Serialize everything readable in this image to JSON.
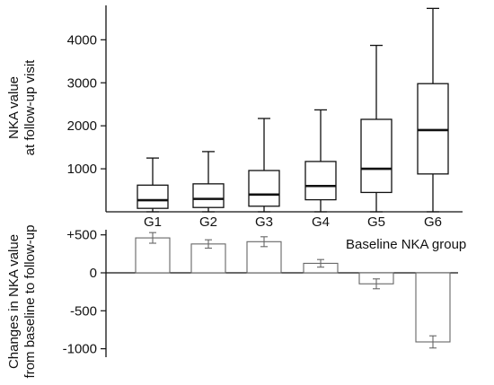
{
  "chart_data": [
    {
      "type": "box",
      "ylabel_lines": [
        "NKA value",
        "at follow-up visit"
      ],
      "yticks": [
        "1000",
        "2000",
        "3000",
        "4000"
      ],
      "ylim": [
        0,
        4800
      ],
      "categories": [
        "G1",
        "G2",
        "G3",
        "G4",
        "G5",
        "G6"
      ],
      "boxes": [
        {
          "min": 0,
          "q1": 80,
          "median": 270,
          "q3": 620,
          "max": 1250
        },
        {
          "min": 0,
          "q1": 100,
          "median": 300,
          "q3": 650,
          "max": 1400
        },
        {
          "min": 0,
          "q1": 130,
          "median": 400,
          "q3": 960,
          "max": 2170
        },
        {
          "min": 0,
          "q1": 280,
          "median": 600,
          "q3": 1170,
          "max": 2370
        },
        {
          "min": 0,
          "q1": 450,
          "median": 1000,
          "q3": 2150,
          "max": 3870
        },
        {
          "min": 0,
          "q1": 880,
          "median": 1900,
          "q3": 2980,
          "max": 4730
        }
      ],
      "legend_text": "Baseline NKA group"
    },
    {
      "type": "bar",
      "ylabel_lines": [
        "Changes in NKA value",
        "from baseline to follow-up"
      ],
      "yticks": [
        "+500",
        "0",
        "-500",
        "-1000"
      ],
      "ylim": [
        -1100,
        600
      ],
      "categories": [
        "G1",
        "G2",
        "G3",
        "G4",
        "G5",
        "G6"
      ],
      "values": [
        460,
        380,
        410,
        125,
        -145,
        -910
      ],
      "errors": [
        70,
        55,
        65,
        50,
        65,
        80
      ]
    }
  ]
}
